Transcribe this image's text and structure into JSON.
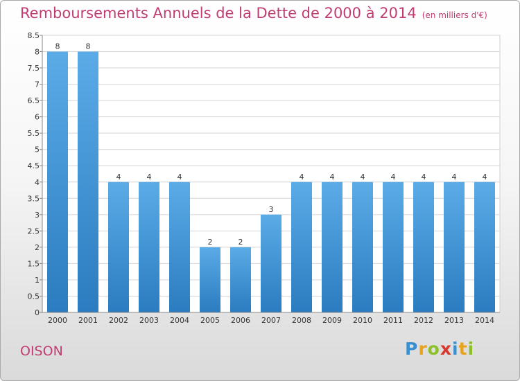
{
  "title": "Remboursements Annuels de la Dette de 2000 à 2014",
  "subtitle": "(en milliers d'€)",
  "commune": "OISON",
  "logo": {
    "letters": [
      "P",
      "r",
      "o",
      "x",
      "i",
      "t",
      "i"
    ],
    "colors": [
      "#3a8fd0",
      "#e8a21e",
      "#8cbf2a",
      "#d8372d",
      "#3a8fd0",
      "#e8a21e",
      "#8cbf2a"
    ]
  },
  "colors": {
    "accent": "#c03c72",
    "bar_light": "#5aabe6",
    "bar_dark": "#2b7cc0",
    "grid": "#d4d4d4"
  },
  "chart_data": {
    "type": "bar",
    "categories": [
      "2000",
      "2001",
      "2002",
      "2003",
      "2004",
      "2005",
      "2006",
      "2007",
      "2008",
      "2009",
      "2010",
      "2011",
      "2012",
      "2013",
      "2014"
    ],
    "values": [
      8,
      8,
      4,
      4,
      4,
      2,
      2,
      3,
      4,
      4,
      4,
      4,
      4,
      4,
      4
    ],
    "data_labels": [
      "8",
      "8",
      "4",
      "4",
      "4",
      "2",
      "2",
      "3",
      "4",
      "4",
      "4",
      "4",
      "4",
      "4",
      "4"
    ],
    "yticks": [
      "0",
      "0.5",
      "1",
      "1.5",
      "2",
      "2.5",
      "3",
      "3.5",
      "4",
      "4.5",
      "5",
      "5.5",
      "6",
      "6.5",
      "7",
      "7.5",
      "8",
      "8.5"
    ],
    "ylim": [
      0,
      8.5
    ],
    "grid": true,
    "legend": "none"
  }
}
